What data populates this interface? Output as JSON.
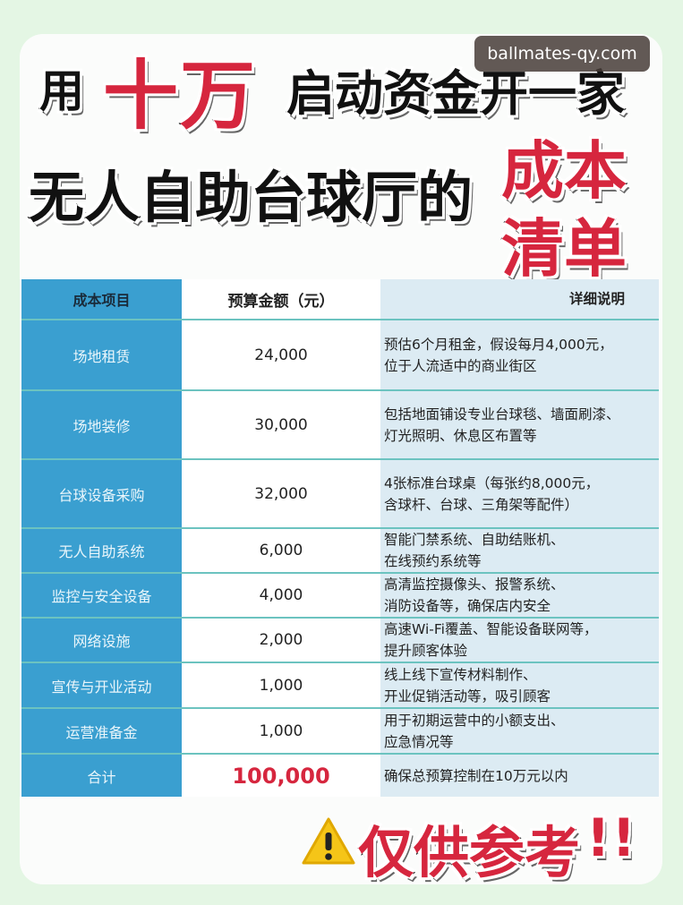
{
  "watermark": "ballmates-qy.com",
  "title": {
    "part1": "用",
    "part2": "十万",
    "part3": "启动资金开一家",
    "line2": "无人自助台球厅的",
    "red1": "成本",
    "red2": "清单"
  },
  "table": {
    "headers": [
      "成本项目",
      "预算金额（元）",
      "详细说明"
    ],
    "rows": [
      {
        "item": "场地租赁",
        "amount": "24,000",
        "desc": [
          "预估6个月租金，假设每月4,000元，",
          "位于人流适中的商业街区"
        ]
      },
      {
        "item": "场地装修",
        "amount": "30,000",
        "desc": [
          "包括地面铺设专业台球毯、墙面刷漆、",
          "灯光照明、休息区布置等"
        ]
      },
      {
        "item": "台球设备采购",
        "amount": "32,000",
        "desc": [
          "4张标准台球桌（每张约8,000元，",
          "含球杆、台球、三角架等配件）"
        ]
      },
      {
        "item": "无人自助系统",
        "amount": "6,000",
        "desc": [
          "智能门禁系统、自助结账机、",
          "在线预约系统等"
        ]
      },
      {
        "item": "监控与安全设备",
        "amount": "4,000",
        "desc": [
          "高清监控摄像头、报警系统、",
          "消防设备等，确保店内安全"
        ]
      },
      {
        "item": "网络设施",
        "amount": "2,000",
        "desc": [
          "高速Wi-Fi覆盖、智能设备联网等，",
          "提升顾客体验"
        ]
      },
      {
        "item": "宣传与开业活动",
        "amount": "1,000",
        "desc": [
          "线上线下宣传材料制作、",
          "开业促销活动等，吸引顾客"
        ]
      },
      {
        "item": "运营准备金",
        "amount": "1,000",
        "desc": [
          "用于初期运营中的小额支出、",
          "应急情况等"
        ]
      }
    ],
    "total": {
      "item": "合计",
      "amount": "100,000",
      "desc": [
        "确保总预算控制在10万元以内"
      ]
    }
  },
  "footer": {
    "text": "仅供参考",
    "marks": "!!",
    "icon": "warning-icon"
  }
}
